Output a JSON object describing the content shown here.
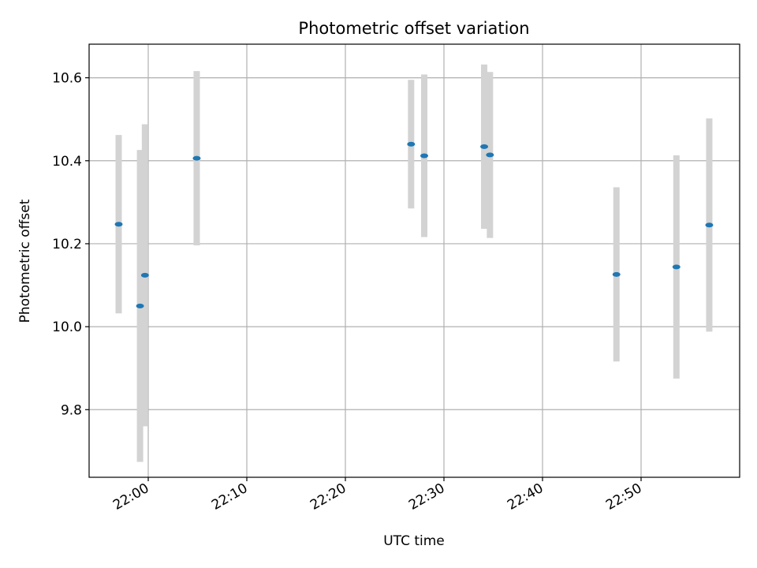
{
  "chart_data": {
    "type": "scatter",
    "title": "Photometric offset variation",
    "xlabel": "UTC time",
    "ylabel": "Photometric offset",
    "xlim": [
      "21:54",
      "23:00"
    ],
    "ylim": [
      9.637,
      10.681
    ],
    "x_ticks": [
      "22:00",
      "22:10",
      "22:20",
      "22:30",
      "22:40",
      "22:50"
    ],
    "y_ticks": [
      9.8,
      10.0,
      10.2,
      10.4,
      10.6
    ],
    "grid": true,
    "colors": {
      "marker": "#1f77b4",
      "errorbar": "#d3d3d3",
      "grid": "#b0b0b0"
    },
    "series": [
      {
        "points": [
          {
            "time": "21:57:00",
            "value": 10.247,
            "err": 0.215
          },
          {
            "time": "21:59:10",
            "value": 10.05,
            "err": 0.376
          },
          {
            "time": "21:59:40",
            "value": 10.124,
            "err": 0.364
          },
          {
            "time": "22:04:55",
            "value": 10.406,
            "err": 0.21
          },
          {
            "time": "22:26:40",
            "value": 10.44,
            "err": 0.155
          },
          {
            "time": "22:28:00",
            "value": 10.412,
            "err": 0.196
          },
          {
            "time": "22:34:05",
            "value": 10.434,
            "err": 0.198
          },
          {
            "time": "22:34:40",
            "value": 10.414,
            "err": 0.2
          },
          {
            "time": "22:47:30",
            "value": 10.126,
            "err": 0.21
          },
          {
            "time": "22:53:35",
            "value": 10.144,
            "err": 0.269
          },
          {
            "time": "22:56:55",
            "value": 10.245,
            "err": 0.257
          }
        ]
      }
    ]
  }
}
